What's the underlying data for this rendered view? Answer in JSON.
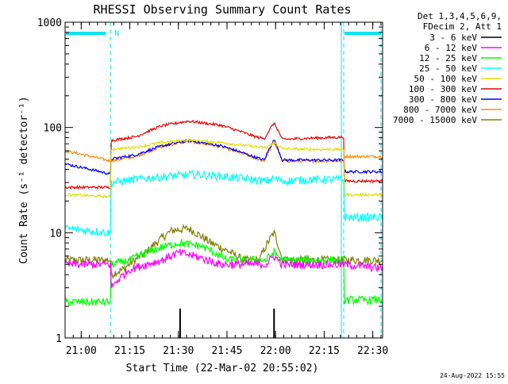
{
  "chart_data": {
    "type": "line",
    "title": "RHESSI Observing Summary Count Rates",
    "xlabel": "Start Time (22-Mar-02 20:55:02)",
    "ylabel": "Count Rate (s⁻¹ detector⁻¹)",
    "yscale": "log",
    "ylim": [
      1,
      1000
    ],
    "xlim_minutes_after_start": [
      0,
      98
    ],
    "x_tick_labels": [
      "21:00",
      "21:15",
      "21:30",
      "21:45",
      "22:00",
      "22:15",
      "22:30"
    ],
    "x_tick_minutes": [
      4.97,
      19.97,
      34.97,
      49.97,
      64.97,
      79.97,
      94.97
    ],
    "y_tick_labels": [
      "1",
      "10",
      "100",
      "1000"
    ],
    "y_tick_values": [
      1,
      10,
      100,
      1000
    ],
    "legend_header": [
      "Det 1,3,4,5,6,9,",
      "FDecim 2, Att 1"
    ],
    "legend_position": "right",
    "night_intervals_minutes": [
      [
        0,
        14
      ],
      [
        86,
        98
      ]
    ],
    "night_flag_label": "N",
    "timestamp": "24-Aug-2022 15:55",
    "colors": {
      "axes": "#000000",
      "title": "#000000",
      "night_bar": "#00e5ee",
      "night_dashed": "#00e5ee"
    },
    "series": [
      {
        "name": "3 - 6 keV",
        "color": "#000000",
        "x": [
          35.5,
          64.5
        ],
        "values": [
          1.9,
          1.9
        ],
        "style": "spike"
      },
      {
        "name": "6 - 12 keV",
        "color": "#ff00ff",
        "x": [
          0,
          14,
          14.1,
          20,
          30,
          35,
          40,
          48,
          62,
          64.5,
          67,
          86,
          86.1,
          98
        ],
        "values": [
          5,
          5,
          3,
          4.5,
          5.5,
          6.5,
          6,
          5,
          5,
          6,
          5,
          5,
          5,
          4.6
        ],
        "style": "noisy"
      },
      {
        "name": "12 - 25 keV",
        "color": "#00ff00",
        "x": [
          0,
          14,
          14.1,
          20,
          28,
          35,
          42,
          50,
          62,
          64.5,
          67,
          86,
          86.1,
          98
        ],
        "values": [
          2.2,
          2.2,
          5,
          5.5,
          7,
          8,
          7.5,
          5.5,
          5.5,
          6.5,
          5.5,
          5.5,
          2.3,
          2.3
        ],
        "style": "noisy"
      },
      {
        "name": "25 - 50 keV",
        "color": "#00ffff",
        "x": [
          0,
          14,
          14.1,
          25,
          35,
          40,
          50,
          62,
          64.5,
          67,
          75,
          86,
          86.1,
          98
        ],
        "values": [
          11,
          10,
          30,
          33,
          35,
          36,
          34,
          31,
          33,
          31,
          32,
          32,
          14,
          14
        ],
        "style": "noisy"
      },
      {
        "name": "50 - 100 keV",
        "color": "#e0e000",
        "x": [
          0,
          14,
          14.1,
          22,
          30,
          38,
          48,
          58,
          62,
          64.5,
          67,
          75,
          86,
          86.1,
          98
        ],
        "values": [
          23,
          22,
          62,
          65,
          72,
          76,
          72,
          66,
          64,
          72,
          63,
          62,
          62,
          23,
          23
        ],
        "style": "noisy"
      },
      {
        "name": "100 - 300 keV",
        "color": "#ee0000",
        "x": [
          0,
          14,
          14.1,
          22,
          30,
          38,
          48,
          58,
          61.5,
          64.5,
          67,
          75,
          86,
          86.1,
          98
        ],
        "values": [
          27,
          27,
          75,
          82,
          104,
          115,
          105,
          83,
          78,
          110,
          77,
          79,
          81,
          31,
          31
        ],
        "style": "noisy"
      },
      {
        "name": "300 - 800 keV",
        "color": "#0000ff",
        "x": [
          0,
          14,
          14.1,
          22,
          30,
          38,
          48,
          58,
          61.5,
          64.5,
          67,
          75,
          86,
          86.1,
          98
        ],
        "values": [
          45,
          36,
          50,
          55,
          67,
          75,
          67,
          53,
          49,
          76,
          49,
          49,
          49,
          38,
          38
        ],
        "style": "noisy"
      },
      {
        "name": "800 - 7000 keV",
        "color": "#ff8800",
        "x": [
          0,
          14,
          14.1,
          22,
          30,
          38,
          48,
          58,
          61.5,
          64.5,
          67,
          75,
          86,
          86.1,
          98
        ],
        "values": [
          60,
          48,
          48,
          53,
          66,
          74,
          66,
          52,
          48,
          72,
          48,
          48,
          48,
          53,
          53
        ],
        "style": "noisy"
      },
      {
        "name": "7000 - 15000 keV",
        "color": "#808000",
        "x": [
          0,
          14,
          14.1,
          18,
          25,
          33,
          38,
          45,
          55,
          60,
          64.5,
          67,
          86,
          86.1,
          98
        ],
        "values": [
          5.5,
          5.5,
          4,
          4.5,
          6.5,
          10.5,
          11,
          8,
          5.5,
          5.5,
          10,
          5.5,
          5.5,
          5.5,
          5.5
        ],
        "style": "noisy"
      }
    ]
  }
}
